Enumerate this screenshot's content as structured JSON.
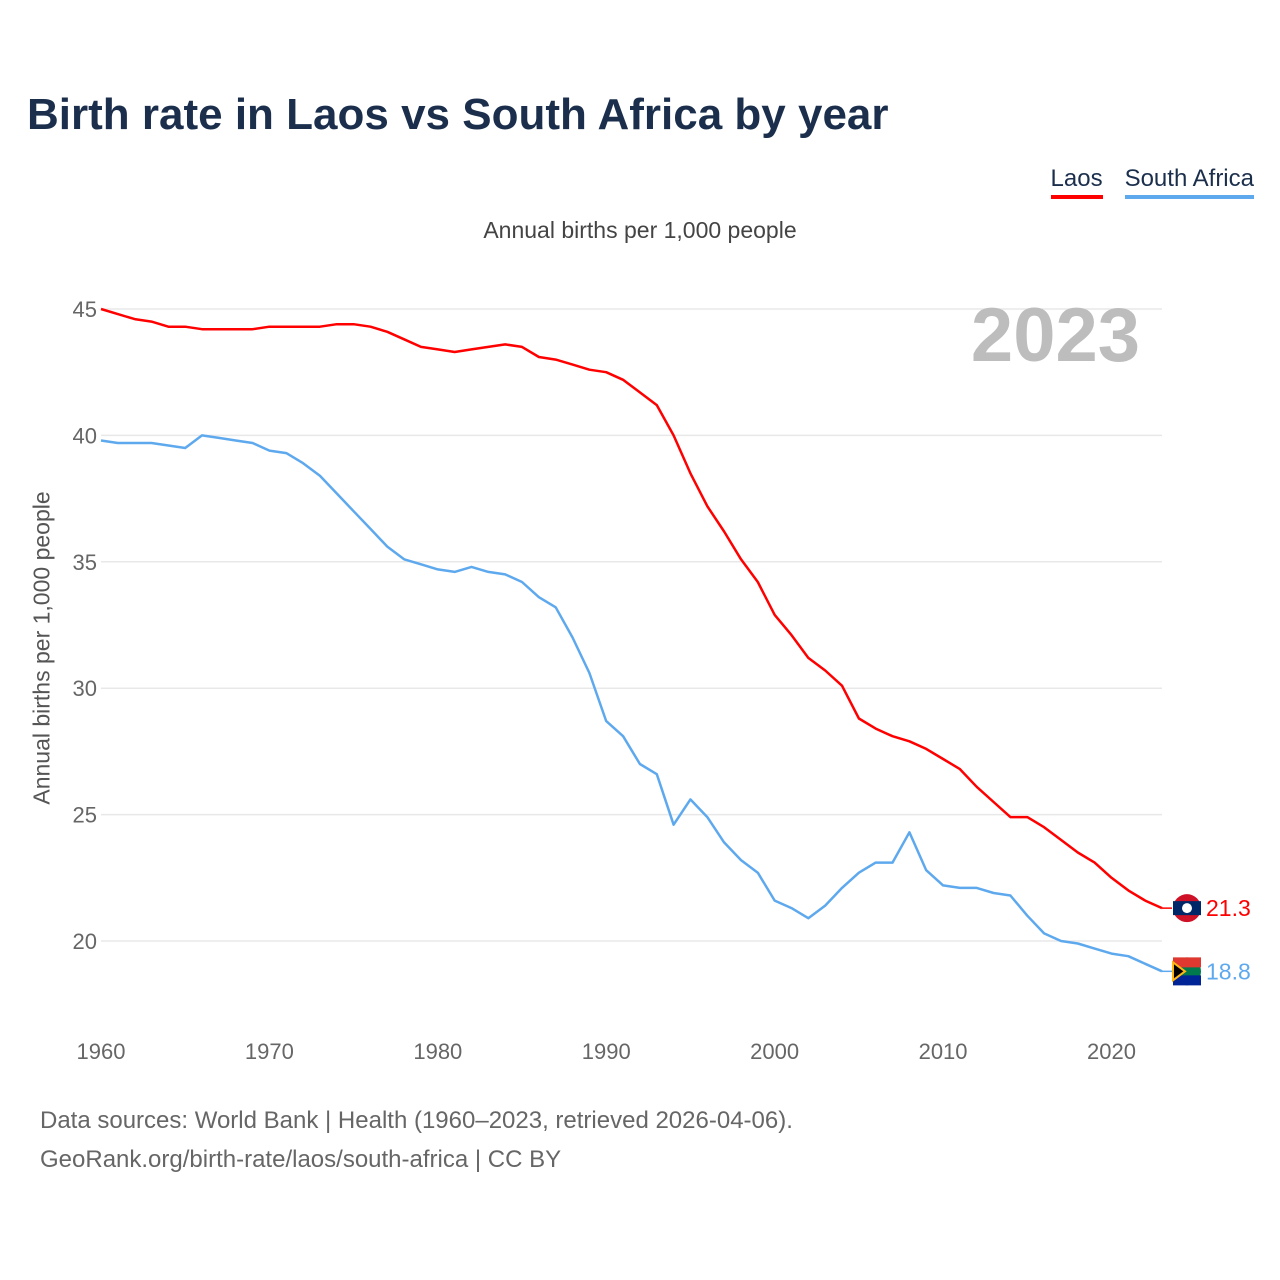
{
  "chart_data": {
    "type": "line",
    "title": "Birth rate in Laos vs South Africa by year",
    "subtitle": "Annual births per 1,000 people",
    "ylabel": "Annual births per 1,000 people",
    "xlabel": "",
    "year_label": "2023",
    "xlim": [
      1960,
      2023
    ],
    "ylim": [
      17,
      46
    ],
    "x_ticks": [
      1960,
      1970,
      1980,
      1990,
      2000,
      2010,
      2020
    ],
    "y_ticks": [
      20,
      25,
      30,
      35,
      40,
      45
    ],
    "grid": true,
    "legend_position": "top-right",
    "x_start": 1960,
    "series": [
      {
        "name": "Laos",
        "color": "#ff0000",
        "end_label": "21.3",
        "values": [
          45.0,
          44.8,
          44.6,
          44.5,
          44.3,
          44.3,
          44.2,
          44.2,
          44.2,
          44.2,
          44.3,
          44.3,
          44.3,
          44.3,
          44.4,
          44.4,
          44.3,
          44.1,
          43.8,
          43.5,
          43.4,
          43.3,
          43.4,
          43.5,
          43.6,
          43.5,
          43.1,
          43.0,
          42.8,
          42.6,
          42.5,
          42.2,
          41.7,
          41.2,
          40.0,
          38.5,
          37.2,
          36.2,
          35.1,
          34.2,
          32.9,
          32.1,
          31.2,
          30.7,
          30.1,
          28.8,
          28.4,
          28.1,
          27.9,
          27.6,
          27.2,
          26.8,
          26.1,
          25.5,
          24.9,
          24.9,
          24.5,
          24.0,
          23.5,
          23.1,
          22.5,
          22.0,
          21.6,
          21.3
        ]
      },
      {
        "name": "South Africa",
        "color": "#5ea9ee",
        "end_label": "18.8",
        "values": [
          39.8,
          39.7,
          39.7,
          39.7,
          39.6,
          39.5,
          40.0,
          39.9,
          39.8,
          39.7,
          39.4,
          39.3,
          38.9,
          38.4,
          37.7,
          37.0,
          36.3,
          35.6,
          35.1,
          34.9,
          34.7,
          34.6,
          34.8,
          34.6,
          34.5,
          34.2,
          33.6,
          33.2,
          32.0,
          30.6,
          28.7,
          28.1,
          27.0,
          26.6,
          24.6,
          25.6,
          24.9,
          23.9,
          23.2,
          22.7,
          21.6,
          21.3,
          20.9,
          21.4,
          22.1,
          22.7,
          23.1,
          23.1,
          24.3,
          22.8,
          22.2,
          22.1,
          22.1,
          21.9,
          21.8,
          21.0,
          20.3,
          20.0,
          19.9,
          19.7,
          19.5,
          19.4,
          19.1,
          18.8
        ]
      }
    ]
  },
  "footer": {
    "line1": "Data sources: World Bank | Health (1960–2023, retrieved 2026-04-06).",
    "line2": "GeoRank.org/birth-rate/laos/south-africa | CC BY"
  }
}
